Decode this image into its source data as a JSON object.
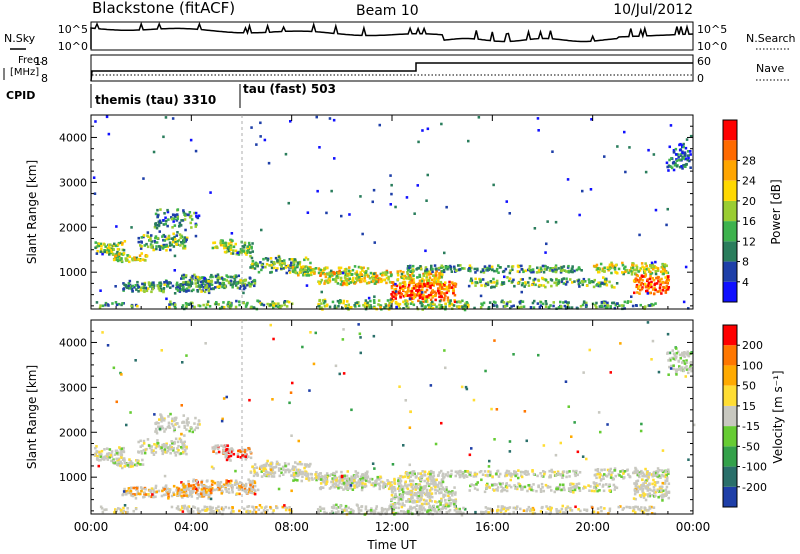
{
  "header": {
    "station": "Blackstone (fitACF)",
    "beam": "Beam 10",
    "date": "10/Jul/2012"
  },
  "summary_panels": {
    "nsky_label": "N.Sky",
    "nsky_ticks": [
      "10^5",
      "10^0"
    ],
    "nsearch_label": "N.Search",
    "nsearch_ticks": [
      "10^5",
      "10^0"
    ],
    "freq_label_line1": "Freq.",
    "freq_label_line2": "[MHz]",
    "freq_ticks": [
      "18",
      "8"
    ],
    "nave_label": "Nave",
    "nave_ticks": [
      "60",
      "0"
    ],
    "cpid_label": "CPID",
    "cpid_segments": [
      {
        "label": "themis (tau) 3310",
        "start_hour": 0
      },
      {
        "label": "tau (fast) 503",
        "start_hour": 6
      }
    ]
  },
  "chart_data": [
    {
      "type": "heatmap",
      "quantity": "Power",
      "ylabel": "Slant Range [km]",
      "ylim": [
        180,
        4500
      ],
      "yticks": [
        "1000",
        "2000",
        "3000",
        "4000"
      ],
      "colorbar_label": "Power [dB]",
      "colorbar_ticks": [
        "4",
        "8",
        "12",
        "16",
        "20",
        "24",
        "28"
      ],
      "colorbar_colors": [
        "#1010ff",
        "#1e3fa8",
        "#2a7d5c",
        "#3db24d",
        "#9acd32",
        "#ffd800",
        "#ffa500",
        "#ff6a00",
        "#ff0000"
      ]
    },
    {
      "type": "heatmap",
      "quantity": "Velocity",
      "ylabel": "Slant Range [km]",
      "ylim": [
        180,
        4500
      ],
      "yticks": [
        "1000",
        "2000",
        "3000",
        "4000"
      ],
      "colorbar_label": "Velocity [m s⁻¹]",
      "colorbar_ticks": [
        "200",
        "100",
        "50",
        "15",
        "-15",
        "-50",
        "-100",
        "-200"
      ],
      "colorbar_colors": [
        "#1f3fa8",
        "#2a6f6a",
        "#33a14a",
        "#66cc33",
        "#c8c8c0",
        "#ffdd33",
        "#ffaa00",
        "#ff7700",
        "#ff0000"
      ]
    }
  ],
  "time_axis": {
    "xlabel": "Time UT",
    "xlim_hours": [
      0,
      24
    ],
    "ticks": [
      "00:00",
      "04:00",
      "08:00",
      "12:00",
      "16:00",
      "20:00",
      "00:00"
    ]
  }
}
